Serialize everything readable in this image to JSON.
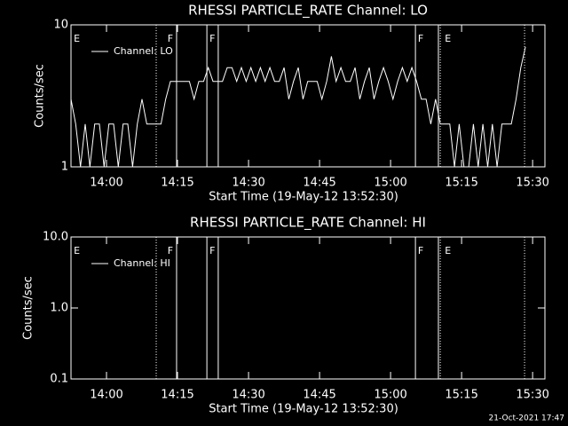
{
  "chart_data": [
    {
      "type": "line",
      "title": "RHESSI PARTICLE_RATE Channel: LO",
      "x_label": "Start Time (19-May-12 13:52:30)",
      "y_label": "Counts/sec",
      "x": [
        0,
        1,
        2,
        3,
        4,
        5,
        6,
        7,
        8,
        9,
        10,
        11,
        12,
        13,
        14,
        15,
        16,
        17,
        18,
        19,
        20,
        21,
        22,
        23,
        24,
        25,
        26,
        27,
        28,
        29,
        30,
        31,
        32,
        33,
        34,
        35,
        36,
        37,
        38,
        39,
        40,
        41,
        42,
        43,
        44,
        45,
        46,
        47,
        48,
        49,
        50,
        51,
        52,
        53,
        54,
        55,
        56,
        57,
        58,
        59,
        60,
        61,
        62,
        63,
        64,
        65,
        66,
        67,
        68,
        69,
        70,
        71,
        72,
        73,
        74,
        75,
        76,
        77,
        78,
        79,
        80,
        81,
        82,
        83,
        84,
        85,
        86,
        87,
        88,
        89,
        90,
        91,
        92,
        93,
        94,
        95,
        96
      ],
      "series": [
        {
          "name": "Channel: LO",
          "color": "#ffffff",
          "values": [
            3,
            2,
            1,
            2,
            1,
            2,
            2,
            1,
            2,
            2,
            1,
            2,
            2,
            1,
            2,
            3,
            2,
            2,
            2,
            2,
            3,
            4,
            4,
            4,
            4,
            4,
            3,
            4,
            4,
            5,
            4,
            4,
            4,
            5,
            5,
            4,
            5,
            4,
            5,
            4,
            5,
            4,
            5,
            4,
            4,
            5,
            3,
            4,
            5,
            3,
            4,
            4,
            4,
            3,
            4,
            6,
            4,
            5,
            4,
            4,
            5,
            3,
            4,
            5,
            3,
            4,
            5,
            4,
            3,
            4,
            5,
            4,
            5,
            4,
            3,
            3,
            2,
            3,
            2,
            2,
            2,
            1,
            2,
            1,
            1,
            2,
            1,
            2,
            1,
            2,
            1,
            2,
            2,
            2,
            3,
            5,
            7
          ]
        }
      ],
      "xlim": [
        0,
        100.1
      ],
      "ylim": [
        1,
        10
      ],
      "log_y": true,
      "xticks": [
        {
          "value": 7.5,
          "label": "14:00"
        },
        {
          "value": 22.5,
          "label": "14:15"
        },
        {
          "value": 37.5,
          "label": "14:30"
        },
        {
          "value": 52.5,
          "label": "14:45"
        },
        {
          "value": 67.5,
          "label": "15:00"
        },
        {
          "value": 82.5,
          "label": "15:15"
        },
        {
          "value": 97.5,
          "label": "15:30"
        }
      ],
      "yticks": [
        1,
        10
      ],
      "markers": [
        {
          "x": 18.0,
          "style": "dotted"
        },
        {
          "x": 22.3,
          "style": "solid"
        },
        {
          "x": 28.7,
          "style": "solid"
        },
        {
          "x": 31.1,
          "style": "solid"
        },
        {
          "x": 72.75,
          "style": "solid"
        },
        {
          "x": 77.6,
          "style": "solid"
        },
        {
          "x": 78.0,
          "style": "dotted"
        },
        {
          "x": 95.8,
          "style": "dotted"
        }
      ],
      "marker_labels": [
        {
          "x": 0.2,
          "text": "E"
        },
        {
          "x": 20.0,
          "text": "F"
        },
        {
          "x": 28.9,
          "text": "F"
        },
        {
          "x": 72.9,
          "text": "F"
        },
        {
          "x": 78.6,
          "text": "E"
        }
      ],
      "legend": "upper left"
    },
    {
      "type": "line",
      "title": "RHESSI PARTICLE_RATE Channel: HI",
      "x_label": "Start Time (19-May-12 13:52:30)",
      "y_label": "Counts/sec",
      "x": [],
      "series": [
        {
          "name": "Channel: HI",
          "color": "#ffffff",
          "values": []
        }
      ],
      "xlim": [
        0,
        100.1
      ],
      "ylim": [
        0.1,
        10
      ],
      "log_y": true,
      "xticks": [
        {
          "value": 7.5,
          "label": "14:00"
        },
        {
          "value": 22.5,
          "label": "14:15"
        },
        {
          "value": 37.5,
          "label": "14:30"
        },
        {
          "value": 52.5,
          "label": "14:45"
        },
        {
          "value": 67.5,
          "label": "15:00"
        },
        {
          "value": 82.5,
          "label": "15:15"
        },
        {
          "value": 97.5,
          "label": "15:30"
        }
      ],
      "yticks": [
        {
          "value": 0.1,
          "label": "0.1"
        },
        {
          "value": 1,
          "label": "1.0"
        },
        {
          "value": 10,
          "label": "10.0"
        }
      ],
      "markers": [
        {
          "x": 18.0,
          "style": "dotted"
        },
        {
          "x": 22.3,
          "style": "solid"
        },
        {
          "x": 28.7,
          "style": "solid"
        },
        {
          "x": 31.1,
          "style": "solid"
        },
        {
          "x": 72.75,
          "style": "solid"
        },
        {
          "x": 77.6,
          "style": "solid"
        },
        {
          "x": 78.0,
          "style": "dotted"
        },
        {
          "x": 95.8,
          "style": "dotted"
        }
      ],
      "marker_labels": [
        {
          "x": 0.2,
          "text": "E"
        },
        {
          "x": 20.0,
          "text": "F"
        },
        {
          "x": 28.9,
          "text": "F"
        },
        {
          "x": 72.9,
          "text": "F"
        },
        {
          "x": 78.6,
          "text": "E"
        }
      ],
      "legend": "upper left"
    }
  ],
  "footer": "21-Oct-2021 17:47"
}
